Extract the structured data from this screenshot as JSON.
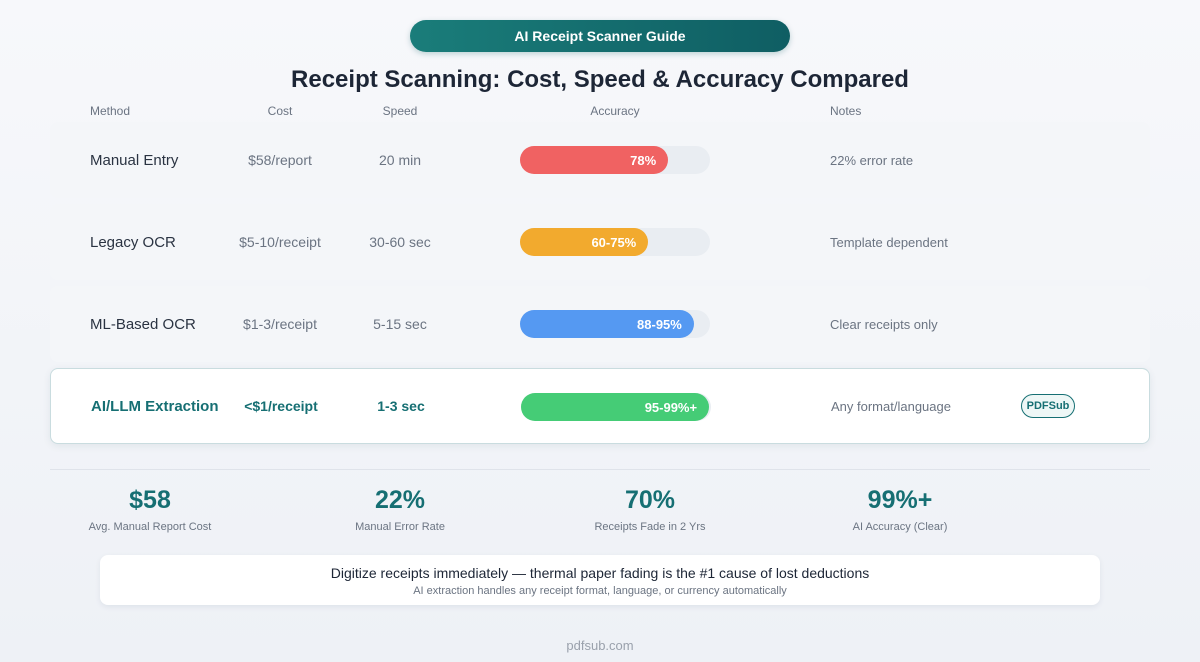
{
  "banner": "AI Receipt Scanner Guide",
  "title": "Receipt Scanning: Cost, Speed & Accuracy Compared",
  "columns": {
    "method": "Method",
    "cost": "Cost",
    "speed": "Speed",
    "accuracy": "Accuracy",
    "notes": "Notes"
  },
  "chart_data": {
    "type": "bar",
    "title": "Receipt Scanning: Cost, Speed & Accuracy Compared",
    "xlabel": "",
    "ylabel": "Accuracy",
    "ylim": [
      0,
      100
    ],
    "categories": [
      "Manual Entry",
      "Legacy OCR",
      "ML-Based OCR",
      "AI/LLM Extraction"
    ],
    "values": [
      78,
      67.5,
      91.5,
      99
    ],
    "value_labels": [
      "78%",
      "60-75%",
      "88-95%",
      "95-99%+"
    ]
  },
  "rows": [
    {
      "method": "Manual Entry",
      "cost": "$58/report",
      "speed": "20 min",
      "accuracy": 78,
      "accuracy_label": "78%",
      "color": "#f06262",
      "notes": "22% error rate"
    },
    {
      "method": "Legacy OCR",
      "cost": "$5-10/receipt",
      "speed": "30-60 sec",
      "accuracy": 67.5,
      "accuracy_label": "60-75%",
      "color": "#f2aa2e",
      "notes": "Template dependent"
    },
    {
      "method": "ML-Based OCR",
      "cost": "$1-3/receipt",
      "speed": "5-15 sec",
      "accuracy": 91.5,
      "accuracy_label": "88-95%",
      "color": "#5599f2",
      "notes": "Clear receipts only"
    },
    {
      "method": "AI/LLM Extraction",
      "cost": "<$1/receipt",
      "speed": "1-3 sec",
      "accuracy": 99,
      "accuracy_label": "95-99%+",
      "color": "#45cc76",
      "notes": "Any format/language",
      "badge": "PDFSub"
    }
  ],
  "stats": [
    {
      "value": "$58",
      "label": "Avg. Manual Report Cost"
    },
    {
      "value": "22%",
      "label": "Manual Error Rate"
    },
    {
      "value": "70%",
      "label": "Receipts Fade in 2 Yrs"
    },
    {
      "value": "99%+",
      "label": "AI Accuracy (Clear)"
    }
  ],
  "tip": {
    "main": "Digitize receipts immediately — thermal paper fading is the #1 cause of lost deductions",
    "sub": "AI extraction handles any receipt format, language, or currency automatically"
  },
  "footer": "pdfsub.com"
}
